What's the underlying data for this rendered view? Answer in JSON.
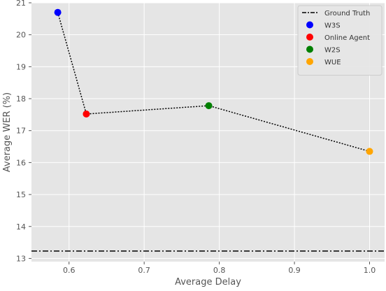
{
  "chart_data": {
    "type": "scatter",
    "title": "",
    "xlabel": "Average Delay",
    "ylabel": "Average WER (%)",
    "xlim": [
      0.55,
      1.02
    ],
    "ylim": [
      12.9,
      21.0
    ],
    "xticks": [
      0.6,
      0.7,
      0.8,
      0.9,
      1.0
    ],
    "xtick_labels": [
      "0.6",
      "0.7",
      "0.8",
      "0.9",
      "1.0"
    ],
    "yticks": [
      13,
      14,
      15,
      16,
      17,
      18,
      19,
      20,
      21
    ],
    "ytick_labels": [
      "13",
      "14",
      "15",
      "16",
      "17",
      "18",
      "19",
      "20",
      "21"
    ],
    "grid": true,
    "legend_position": "top-right",
    "background_color": "#e5e5e5",
    "series": [
      {
        "name": "W3S",
        "x": 0.585,
        "y": 20.7,
        "color": "#0000ff"
      },
      {
        "name": "Online Agent",
        "x": 0.623,
        "y": 17.52,
        "color": "#ff0000"
      },
      {
        "name": "W2S",
        "x": 0.786,
        "y": 17.78,
        "color": "#008000"
      },
      {
        "name": "WUE",
        "x": 1.0,
        "y": 16.35,
        "color": "#ffa500"
      }
    ],
    "connector_line": {
      "style": "dotted",
      "color": "#000000"
    },
    "reference_line": {
      "name": "Ground Truth",
      "y": 13.23,
      "style": "dash-dot",
      "color": "#000000"
    }
  }
}
